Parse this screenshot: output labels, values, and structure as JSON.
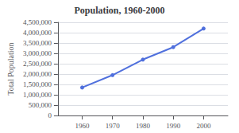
{
  "chart_data": {
    "type": "line",
    "title": "Population, 1960-2000",
    "ylabel": "Total Population",
    "x": [
      1960,
      1970,
      1980,
      1990,
      2000
    ],
    "values": [
      1350000,
      1950000,
      2700000,
      3300000,
      4200000
    ],
    "marker": "circle",
    "xlim": [
      1952,
      2008
    ],
    "xticks": [
      1960,
      1970,
      1980,
      1990,
      2000
    ],
    "ylim": [
      0,
      4500000
    ],
    "yticks": [
      0,
      {
        "value": 500000,
        "label": "500,000"
      },
      {
        "value": 1000000,
        "label": "1,000,000"
      },
      {
        "value": 1500000,
        "label": "1,500,000"
      },
      {
        "value": 2000000,
        "label": "2,000,000"
      },
      {
        "value": 2500000,
        "label": "2,500,000"
      },
      {
        "value": 3000000,
        "label": "3,000,000"
      },
      {
        "value": 3500000,
        "label": "3,500,000"
      },
      {
        "value": 4000000,
        "label": "4,000,000"
      },
      {
        "value": 4500000,
        "label": "4,500,000"
      }
    ],
    "grid": "y"
  }
}
